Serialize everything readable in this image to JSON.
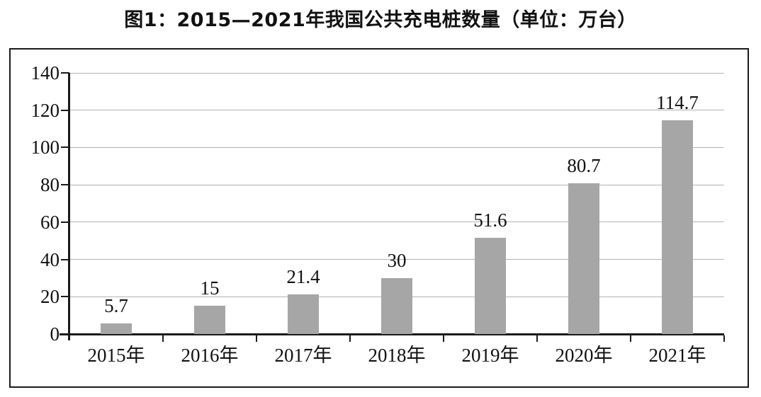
{
  "chart_data": {
    "type": "bar",
    "title": "图1：2015—2021年我国公共充电桩数量（单位：万台）",
    "categories": [
      "2015年",
      "2016年",
      "2017年",
      "2018年",
      "2019年",
      "2020年",
      "2021年"
    ],
    "values": [
      5.7,
      15,
      21.4,
      30,
      51.6,
      80.7,
      114.7
    ],
    "value_labels": [
      "5.7",
      "15",
      "21.4",
      "30",
      "51.6",
      "80.7",
      "114.7"
    ],
    "xlabel": "",
    "ylabel": "",
    "ylim": [
      0,
      140
    ],
    "ytick_interval": 20,
    "yticks": [
      "0",
      "20",
      "40",
      "60",
      "80",
      "100",
      "120",
      "140"
    ],
    "grid": "horizontal",
    "legend": "none",
    "bar_color": "#a6a6a6",
    "grid_color": "#b3b3b3",
    "axis_color": "#1a1a1a",
    "background_color": "#ffffff"
  }
}
